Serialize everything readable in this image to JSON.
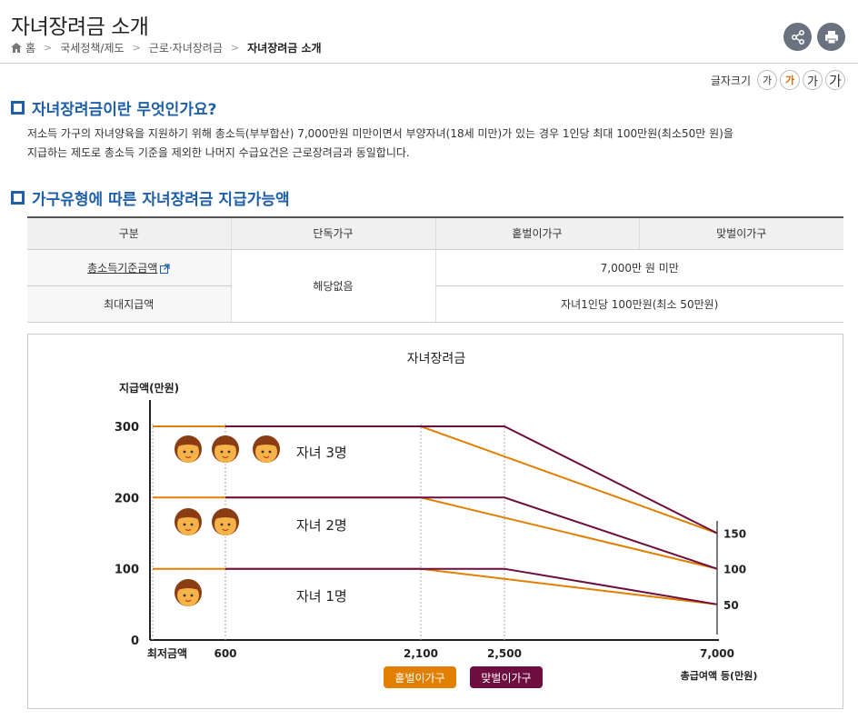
{
  "header": {
    "title": "자녀장려금 소개",
    "breadcrumb": [
      "홈",
      "국세정책/제도",
      "근로·자녀장려금",
      "자녀장려금 소개"
    ]
  },
  "font_size_control": {
    "label": "글자크기",
    "options": [
      "가",
      "가",
      "가",
      "가"
    ],
    "active_index": 1
  },
  "section1": {
    "title": "자녀장려금이란 무엇인가요?",
    "body_line1": "저소득 가구의 자녀양육을 지원하기 위해 총소득(부부합산) 7,000만원 미만이면서 부양자녀(18세 미만)가 있는 경우 1인당 최대 100만원(최소50만 원)을",
    "body_line2": "지급하는 제도로 총소득 기준을 제외한 나머지 수급요건은 근로장려금과 동일합니다."
  },
  "section2": {
    "title": "가구유형에 따른 자녀장려금 지급가능액",
    "table": {
      "headers": [
        "구분",
        "단독가구",
        "홑벌이가구",
        "맞벌이가구"
      ],
      "row1": {
        "label": "총소득기준금액",
        "single": "해당없음",
        "value": "7,000만 원 미만"
      },
      "row2": {
        "label": "최대지급액",
        "value": "자녀1인당 100만원(최소 50만원)"
      }
    }
  },
  "chart_data": {
    "type": "line",
    "title": "자녀장려금",
    "ylabel": "지급액(만원)",
    "xlabel": "총급여액 등(만원)",
    "x_ticks": [
      "최저금액",
      "600",
      "2,100",
      "2,500",
      "7,000"
    ],
    "y_ticks": [
      "300",
      "200",
      "100",
      "0"
    ],
    "ylim": [
      0,
      300
    ],
    "right_labels": [
      "150",
      "100",
      "50"
    ],
    "group_labels": [
      "자녀 3명",
      "자녀 2명",
      "자녀 1명"
    ],
    "legend": [
      "홑벌이가구",
      "맞벌이가구"
    ],
    "colors": {
      "single_income": "#e07f00",
      "dual_income": "#6e0d40"
    },
    "series": [
      {
        "name": "홑벌이가구",
        "group": "자녀 3명",
        "x": [
          0,
          2100,
          7000
        ],
        "y": [
          300,
          300,
          150
        ]
      },
      {
        "name": "맞벌이가구",
        "group": "자녀 3명",
        "x": [
          600,
          2500,
          7000
        ],
        "y": [
          300,
          300,
          150
        ]
      },
      {
        "name": "홑벌이가구",
        "group": "자녀 2명",
        "x": [
          0,
          2100,
          7000
        ],
        "y": [
          200,
          200,
          100
        ]
      },
      {
        "name": "맞벌이가구",
        "group": "자녀 2명",
        "x": [
          600,
          2500,
          7000
        ],
        "y": [
          200,
          200,
          100
        ]
      },
      {
        "name": "홑벌이가구",
        "group": "자녀 1명",
        "x": [
          0,
          2100,
          7000
        ],
        "y": [
          100,
          100,
          50
        ]
      },
      {
        "name": "맞벌이가구",
        "group": "자녀 1명",
        "x": [
          600,
          2500,
          7000
        ],
        "y": [
          100,
          100,
          50
        ]
      }
    ]
  }
}
